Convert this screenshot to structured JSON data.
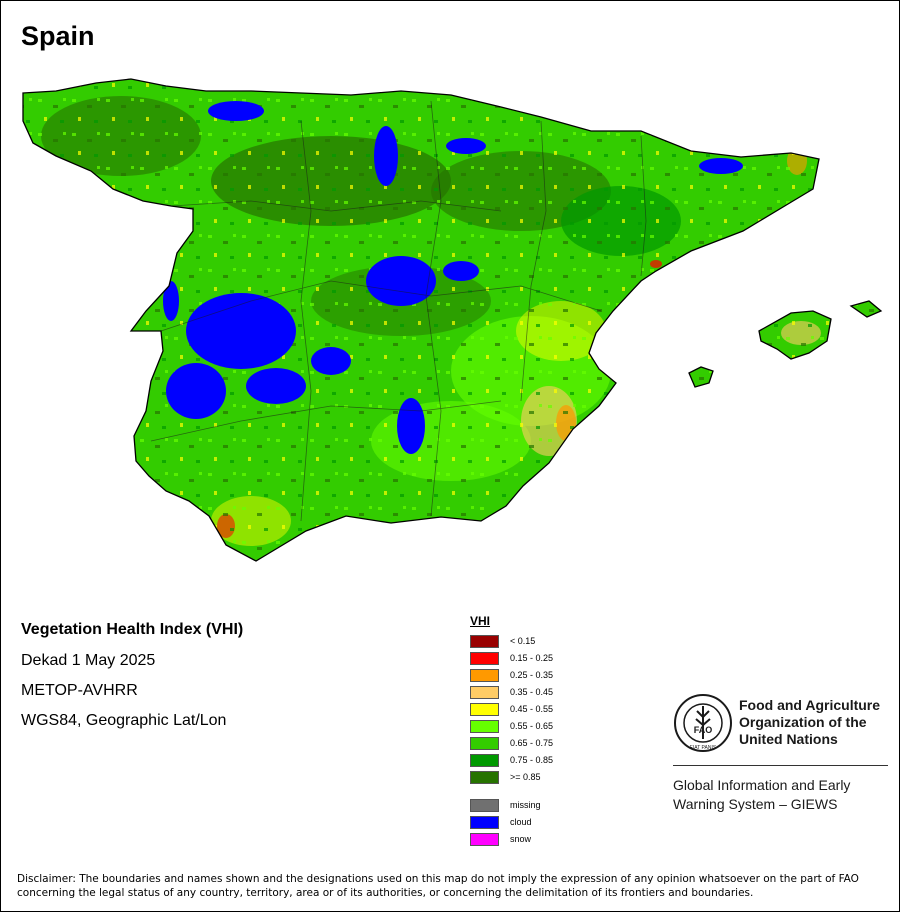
{
  "map": {
    "country": "Spain",
    "product_title": "Vegetation Health Index (VHI)",
    "period": "Dekad 1 May 2025",
    "sensor": "METOP-AVHRR",
    "projection": "WGS84, Geographic Lat/Lon"
  },
  "legend": {
    "title": "VHI",
    "classes": [
      {
        "label": "< 0.15",
        "color": "#990000"
      },
      {
        "label": "0.15 - 0.25",
        "color": "#ff0000"
      },
      {
        "label": "0.25 - 0.35",
        "color": "#ff9900"
      },
      {
        "label": "0.35 - 0.45",
        "color": "#ffcc66"
      },
      {
        "label": "0.45 - 0.55",
        "color": "#ffff00"
      },
      {
        "label": "0.55 - 0.65",
        "color": "#66ff00"
      },
      {
        "label": "0.65 - 0.75",
        "color": "#33cc00"
      },
      {
        "label": "0.75 - 0.85",
        "color": "#009900"
      },
      {
        "label": ">= 0.85",
        "color": "#267300"
      }
    ],
    "special": [
      {
        "label": "missing",
        "color": "#707070"
      },
      {
        "label": "cloud",
        "color": "#0000ff"
      },
      {
        "label": "snow",
        "color": "#ff00ff"
      }
    ]
  },
  "logo": {
    "icon": "fao-logo-icon",
    "org_lines": [
      "Food and Agriculture",
      "Organization of the",
      "United Nations"
    ],
    "emblem_text": "FAO",
    "emblem_motto": "FIAT PANIS",
    "system_lines": [
      "Global Information and Early",
      "Warning System – GIEWS"
    ]
  },
  "disclaimer": "Disclaimer: The boundaries and names shown and the designations used on this map do not imply the expression of any opinion whatsoever on the part of FAO concerning the legal status of any country, territory, area or of its authorities, or concerning the delimitation of its frontiers and boundaries."
}
